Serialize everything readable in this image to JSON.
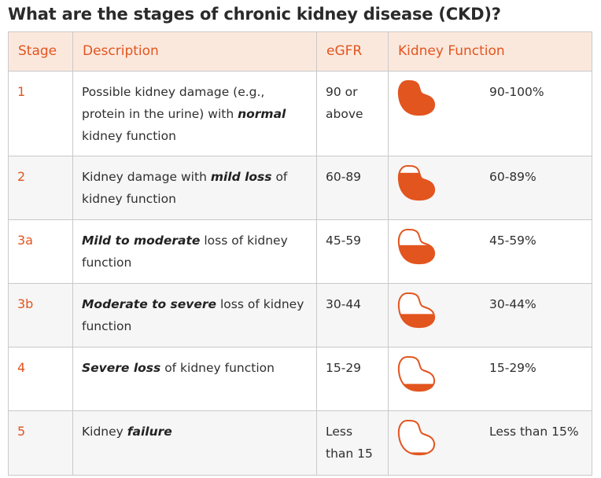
{
  "title": "What are the stages of chronic kidney disease (CKD)?",
  "colors": {
    "accent": "#e2551f",
    "header_bg": "#fbe8dd"
  },
  "headers": {
    "stage": "Stage",
    "description": "Description",
    "egfr": "eGFR",
    "kidney_function": "Kidney Function"
  },
  "rows": [
    {
      "stage": "1",
      "desc_pre": "Possible kidney damage (e.g., protein in the urine) with ",
      "desc_bold": "normal",
      "desc_post": " kidney function",
      "egfr": "90 or above",
      "pct": "90-100%",
      "fill_fraction": 1.0
    },
    {
      "stage": "2",
      "desc_pre": "Kidney damage with ",
      "desc_bold": "mild loss",
      "desc_post": " of kidney function",
      "egfr": "60-89",
      "pct": "60-89%",
      "fill_fraction": 0.8
    },
    {
      "stage": "3a",
      "desc_pre": "",
      "desc_bold": "Mild to moderate",
      "desc_post": " loss of kidney function",
      "egfr": "45-59",
      "pct": "45-59%",
      "fill_fraction": 0.55
    },
    {
      "stage": "3b",
      "desc_pre": "",
      "desc_bold": "Moderate to severe",
      "desc_post": " loss of kidney function",
      "egfr": "30-44",
      "pct": "30-44%",
      "fill_fraction": 0.4
    },
    {
      "stage": "4",
      "desc_pre": "",
      "desc_bold": "Severe loss",
      "desc_post": " of kidney function",
      "egfr": "15-29",
      "pct": "15-29%",
      "fill_fraction": 0.22
    },
    {
      "stage": "5",
      "desc_pre": "Kidney ",
      "desc_bold": "failure",
      "desc_post": "",
      "egfr": "Less than 15",
      "pct": "Less than 15%",
      "fill_fraction": 0.08
    }
  ]
}
